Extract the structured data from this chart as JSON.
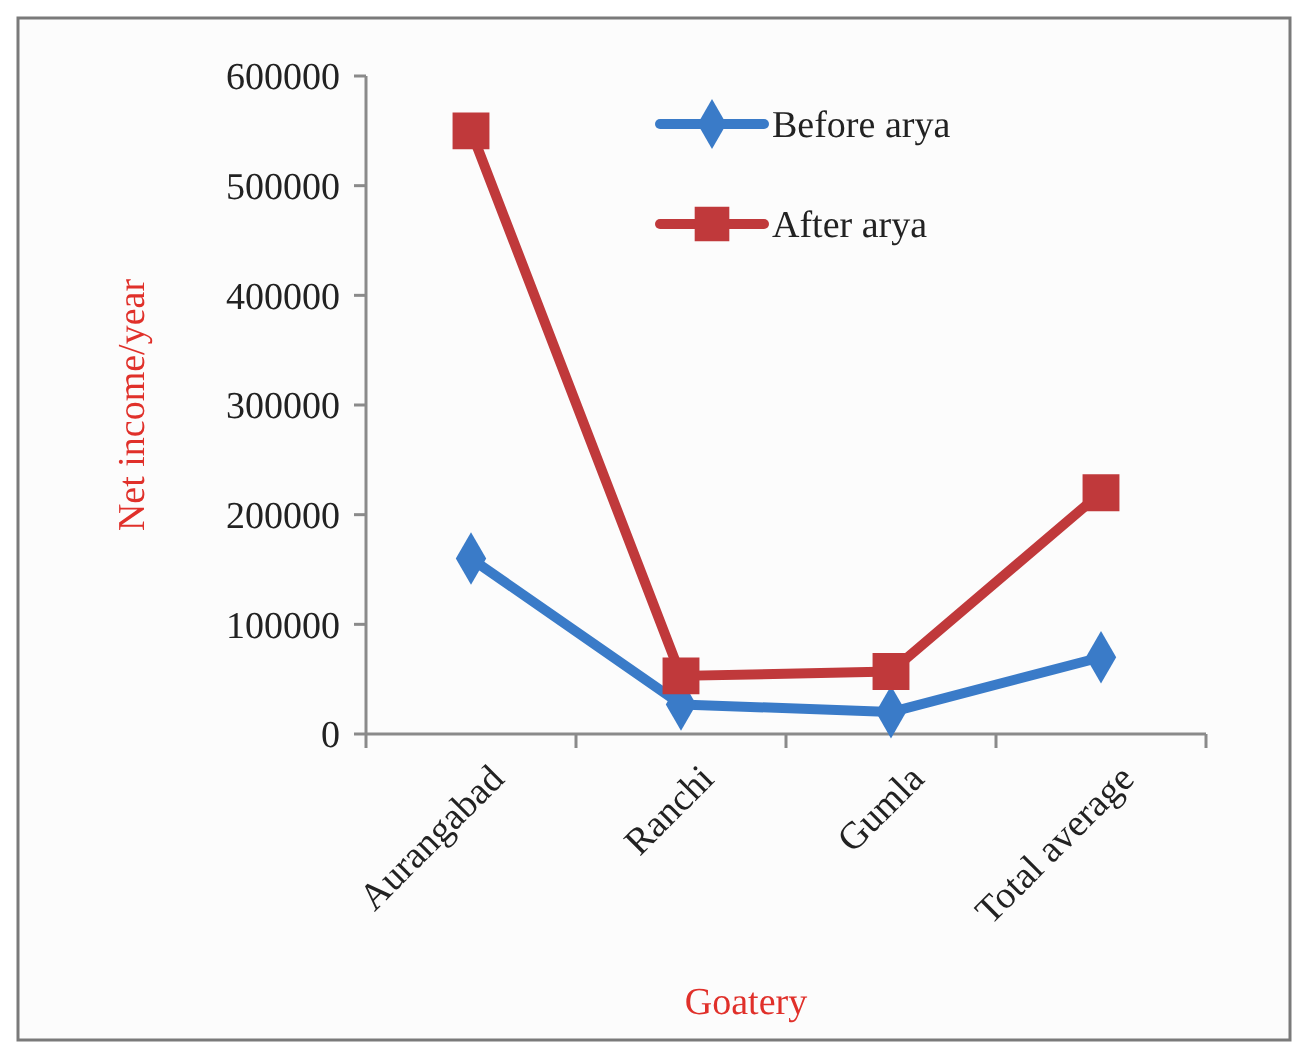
{
  "chart_data": {
    "type": "line",
    "xlabel": "Goatery",
    "ylabel": "Net income/year",
    "categories": [
      "Aurangabad",
      "Ranchi",
      "Gumla",
      "Total average"
    ],
    "series": [
      {
        "name": "Before arya",
        "color": "#3a7bc8",
        "marker": "diamond",
        "values": [
          160000,
          27000,
          20000,
          70000
        ]
      },
      {
        "name": "After arya",
        "color": "#c0393b",
        "marker": "square",
        "values": [
          550000,
          53000,
          57000,
          220000
        ]
      }
    ],
    "ylim": [
      0,
      600000
    ],
    "yticks": [
      0,
      100000,
      200000,
      300000,
      400000,
      500000,
      600000
    ],
    "grid": false,
    "legend": "top",
    "line_style": "solid"
  }
}
